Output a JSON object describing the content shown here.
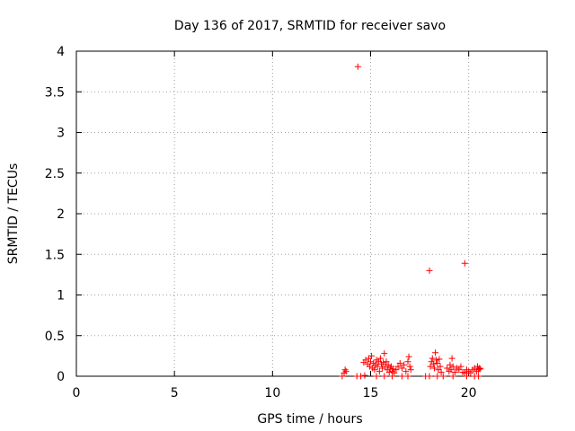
{
  "chart_data": {
    "type": "scatter",
    "title": "Day 136 of 2017, SRMTID for receiver savo",
    "xlabel": "GPS time / hours",
    "ylabel": "SRMTID / TECUs",
    "xlim": [
      0,
      24
    ],
    "ylim": [
      0,
      4
    ],
    "xticks": [
      0,
      5,
      10,
      15,
      20
    ],
    "yticks": [
      0,
      0.5,
      1,
      1.5,
      2,
      2.5,
      3,
      3.5,
      4
    ],
    "ytick_labels": [
      "0",
      "0.5",
      "1",
      "1.5",
      "2",
      "2.5",
      "3",
      "3.5",
      "4"
    ],
    "grid": true,
    "marker": "plus",
    "color": "#ff0000",
    "series": [
      {
        "points": [
          [
            14.35,
            3.81
          ],
          [
            18.0,
            1.3
          ],
          [
            19.8,
            1.39
          ],
          [
            13.55,
            0.0
          ],
          [
            13.65,
            0.04
          ],
          [
            13.7,
            0.08
          ],
          [
            13.75,
            0.06
          ],
          [
            14.3,
            0.0
          ],
          [
            14.5,
            0.0
          ],
          [
            14.7,
            0.01
          ],
          [
            14.65,
            0.17
          ],
          [
            14.75,
            0.2
          ],
          [
            14.85,
            0.15
          ],
          [
            14.9,
            0.22
          ],
          [
            14.95,
            0.12
          ],
          [
            15.0,
            0.18
          ],
          [
            15.05,
            0.25
          ],
          [
            15.1,
            0.1
          ],
          [
            15.15,
            0.16
          ],
          [
            15.2,
            0.08
          ],
          [
            15.25,
            0.14
          ],
          [
            15.3,
            0.2
          ],
          [
            15.35,
            0.12
          ],
          [
            15.4,
            0.18
          ],
          [
            15.45,
            0.06
          ],
          [
            15.5,
            0.22
          ],
          [
            15.55,
            0.15
          ],
          [
            15.6,
            0.1
          ],
          [
            15.65,
            0.17
          ],
          [
            15.7,
            0.28
          ],
          [
            15.75,
            0.12
          ],
          [
            15.8,
            0.18
          ],
          [
            15.85,
            0.08
          ],
          [
            15.9,
            0.14
          ],
          [
            15.95,
            0.05
          ],
          [
            16.0,
            0.1
          ],
          [
            16.05,
            0.12
          ],
          [
            16.1,
            0.06
          ],
          [
            16.15,
            0.09
          ],
          [
            16.2,
            0.04
          ],
          [
            16.3,
            0.08
          ],
          [
            16.4,
            0.12
          ],
          [
            16.5,
            0.16
          ],
          [
            16.6,
            0.1
          ],
          [
            16.7,
            0.14
          ],
          [
            16.8,
            0.06
          ],
          [
            16.9,
            0.18
          ],
          [
            16.95,
            0.24
          ],
          [
            17.0,
            0.12
          ],
          [
            17.05,
            0.08
          ],
          [
            15.3,
            0.0
          ],
          [
            15.7,
            0.0
          ],
          [
            16.1,
            0.0
          ],
          [
            16.6,
            0.0
          ],
          [
            16.9,
            0.0
          ],
          [
            17.8,
            0.0
          ],
          [
            18.0,
            0.0
          ],
          [
            18.4,
            0.0
          ],
          [
            18.7,
            0.0
          ],
          [
            19.2,
            0.0
          ],
          [
            18.05,
            0.12
          ],
          [
            18.1,
            0.18
          ],
          [
            18.15,
            0.22
          ],
          [
            18.2,
            0.15
          ],
          [
            18.25,
            0.1
          ],
          [
            18.3,
            0.29
          ],
          [
            18.35,
            0.2
          ],
          [
            18.4,
            0.16
          ],
          [
            18.45,
            0.08
          ],
          [
            18.5,
            0.21
          ],
          [
            18.55,
            0.12
          ],
          [
            18.6,
            0.05
          ],
          [
            18.9,
            0.1
          ],
          [
            19.0,
            0.06
          ],
          [
            19.05,
            0.14
          ],
          [
            19.1,
            0.08
          ],
          [
            19.15,
            0.22
          ],
          [
            19.2,
            0.12
          ],
          [
            19.3,
            0.05
          ],
          [
            19.4,
            0.1
          ],
          [
            19.5,
            0.08
          ],
          [
            19.6,
            0.12
          ],
          [
            19.7,
            0.05
          ],
          [
            19.8,
            0.04
          ],
          [
            19.9,
            0.08
          ],
          [
            20.0,
            0.06
          ],
          [
            20.1,
            0.04
          ],
          [
            20.2,
            0.08
          ],
          [
            20.3,
            0.1
          ],
          [
            20.4,
            0.06
          ],
          [
            20.45,
            0.12
          ],
          [
            20.5,
            0.08
          ],
          [
            20.55,
            0.1
          ],
          [
            20.6,
            0.09
          ],
          [
            19.9,
            0.0
          ],
          [
            20.3,
            0.0
          ],
          [
            20.5,
            0.0
          ]
        ]
      }
    ]
  }
}
